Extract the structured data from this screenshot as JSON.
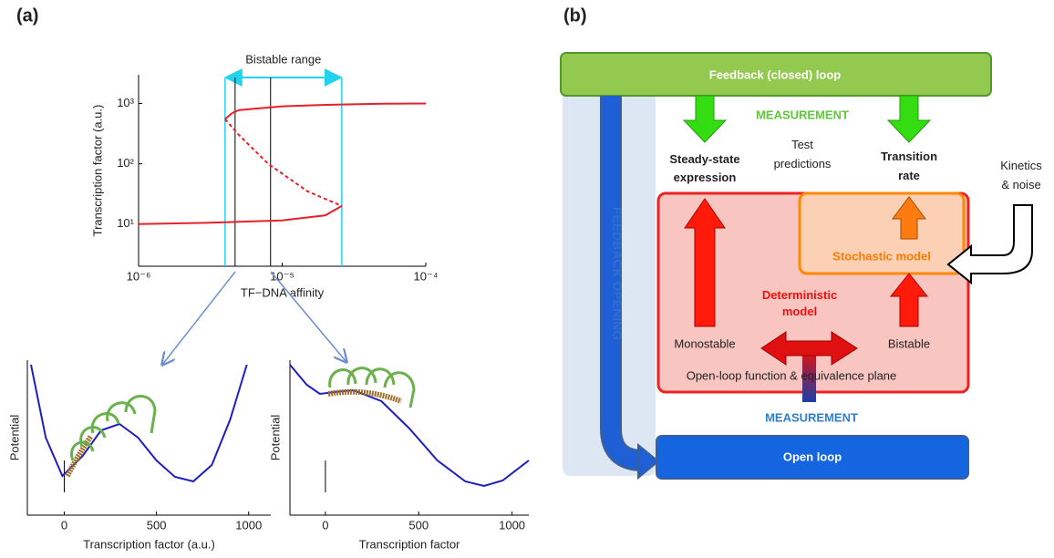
{
  "panel_labels": [
    "(a)",
    "(b)"
  ],
  "chart_data": [
    {
      "type": "line",
      "xlabel": "TF−DNA affinity",
      "ylabel": "Transcription factor (a.u.)",
      "xscale": "log",
      "yscale": "log",
      "xlim": [
        1e-06,
        0.0001
      ],
      "ylim": [
        2,
        3000
      ],
      "xticks": [
        {
          "value": 1e-06,
          "label": "10⁻⁶"
        },
        {
          "value": 1e-05,
          "label": "10⁻⁵"
        },
        {
          "value": 0.0001,
          "label": "10⁻⁴"
        }
      ],
      "yticks": [
        {
          "value": 10,
          "label": "10¹"
        },
        {
          "value": 100,
          "label": "10²"
        },
        {
          "value": 1000,
          "label": "10³"
        }
      ],
      "series": [
        {
          "color": "#e8202a",
          "style": "solid",
          "x": [
            4e-06,
            4.5e-06,
            5e-06,
            1e-05,
            2e-05,
            5e-05,
            0.0001
          ],
          "values": [
            550,
            700,
            780,
            900,
            950,
            990,
            1000
          ]
        },
        {
          "color": "#e8202a",
          "style": "dashed",
          "x": [
            4e-06,
            5e-06,
            8e-06,
            1.5e-05,
            2.6e-05
          ],
          "values": [
            550,
            300,
            100,
            35,
            20
          ]
        },
        {
          "color": "#e8202a",
          "style": "solid",
          "x": [
            1e-06,
            3e-06,
            1e-05,
            2e-05,
            2.6e-05
          ],
          "values": [
            10,
            10.5,
            11.5,
            14,
            20
          ]
        }
      ],
      "annotation": {
        "text": "Bistable range",
        "range": [
          4e-06,
          2.6e-05
        ],
        "color": "#22d3ee"
      },
      "vlines": [
        4.7e-06,
        8.3e-06
      ]
    },
    {
      "type": "line",
      "xlabel": "Transcription factor (a.u.)",
      "ylabel": "Potential",
      "xlim": [
        -200,
        1120
      ],
      "ylim": [
        0,
        170
      ],
      "xticks": [
        0,
        500,
        1000
      ],
      "series": [
        {
          "color": "#1f1fbf",
          "style": "solid",
          "x": [
            -180,
            -100,
            -10,
            100,
            200,
            300,
            400,
            500,
            600,
            700,
            800,
            900,
            990
          ],
          "values": [
            165,
            85,
            43,
            65,
            93,
            100,
            85,
            60,
            42,
            37,
            55,
            105,
            165
          ]
        }
      ],
      "vlines": [
        0
      ]
    },
    {
      "type": "line",
      "xlabel": "Transcription factor",
      "ylabel": "Potential",
      "xlim": [
        -190,
        1090
      ],
      "ylim": [
        0,
        170
      ],
      "xticks": [
        0,
        500,
        1000
      ],
      "series": [
        {
          "color": "#1f1fbf",
          "style": "solid",
          "x": [
            -190,
            -100,
            -30,
            50,
            150,
            300,
            450,
            600,
            750,
            850,
            950,
            1090
          ],
          "values": [
            165,
            143,
            133,
            135,
            137,
            125,
            95,
            60,
            37,
            32,
            38,
            60
          ]
        }
      ],
      "vlines": [
        0
      ]
    }
  ],
  "diagram": {
    "feedback_loop": "Feedback (closed) loop",
    "measurement_top": "MEASUREMENT",
    "steady_state": [
      "Steady-state",
      "expression"
    ],
    "test_predictions": [
      "Test",
      "predictions"
    ],
    "transition_rate": [
      "Transition",
      "rate"
    ],
    "kinetics_noise": [
      "Kinetics",
      "& noise"
    ],
    "feedback_opening": "FEEDBACK OPENING",
    "stochastic_model": "Stochastic model",
    "deterministic_model": [
      "Deterministic",
      "model"
    ],
    "monostable": "Monostable",
    "bistable": "Bistable",
    "open_loop_function": "Open-loop function & equivalence plane",
    "measurement_bottom": "MEASUREMENT",
    "open_loop": "Open loop"
  }
}
